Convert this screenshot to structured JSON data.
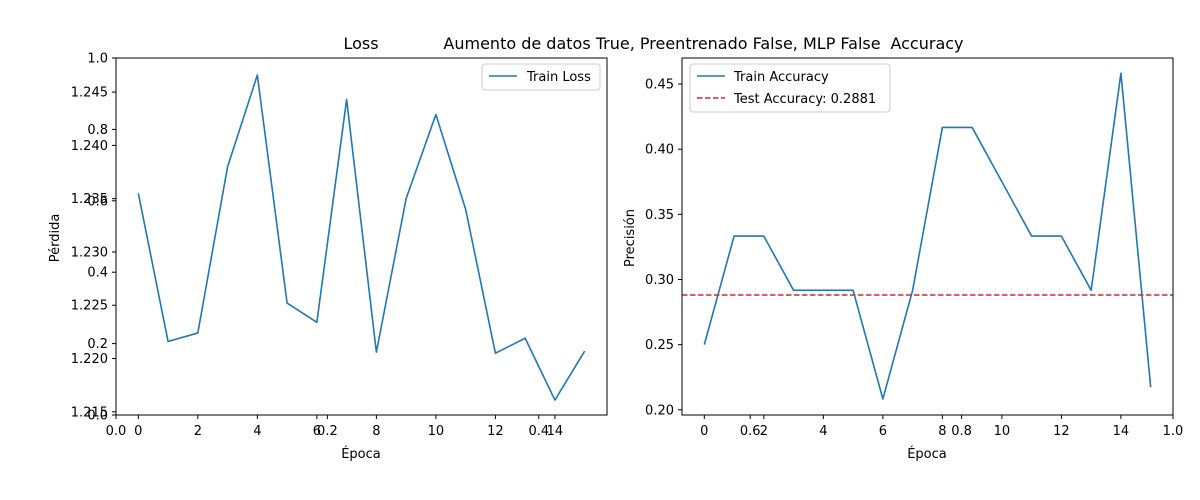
{
  "suptitle": "Aumento de datos True, Preentrenado False, MLP False",
  "chart_data": [
    {
      "type": "line",
      "title": "Loss",
      "xlabel": "Época",
      "ylabel": "Pérdida",
      "x": [
        0,
        1,
        2,
        3,
        4,
        5,
        6,
        7,
        8,
        9,
        10,
        11,
        12,
        13,
        14,
        15
      ],
      "xlim": [
        -0.75,
        15.75
      ],
      "ylim": [
        1.2147,
        1.2482
      ],
      "xticks": [
        0,
        2,
        4,
        6,
        8,
        10,
        12,
        14
      ],
      "yticks": [
        1.215,
        1.22,
        1.225,
        1.23,
        1.235,
        1.24,
        1.245
      ],
      "ytick_labels": [
        "1.215",
        "1.220",
        "1.225",
        "1.230",
        "1.235",
        "1.240",
        "1.245"
      ],
      "grid": false,
      "legend_position": "upper right",
      "series": [
        {
          "name": "Train Loss",
          "color": "#1f77b4",
          "style": "solid",
          "values": [
            1.2355,
            1.2216,
            1.2224,
            1.238,
            1.2466,
            1.2252,
            1.2234,
            1.2443,
            1.2206,
            1.235,
            1.2429,
            1.234,
            1.2205,
            1.2219,
            1.2161,
            1.2207
          ]
        }
      ]
    },
    {
      "type": "line",
      "title": "Accuracy",
      "xlabel": "Época",
      "ylabel": "Precisión",
      "x": [
        0,
        1,
        2,
        3,
        4,
        5,
        6,
        7,
        8,
        9,
        10,
        11,
        12,
        13,
        14,
        15
      ],
      "xlim": [
        -0.75,
        15.75
      ],
      "ylim": [
        0.196,
        0.47
      ],
      "xticks": [
        0,
        2,
        4,
        6,
        8,
        10,
        12,
        14
      ],
      "yticks": [
        0.2,
        0.25,
        0.3,
        0.35,
        0.4,
        0.45
      ],
      "ytick_labels": [
        "0.20",
        "0.25",
        "0.30",
        "0.35",
        "0.40",
        "0.45"
      ],
      "grid": false,
      "legend_position": "upper left",
      "series": [
        {
          "name": "Train Accuracy",
          "color": "#1f77b4",
          "style": "solid",
          "values": [
            0.25,
            0.3333,
            0.3333,
            0.2917,
            0.2917,
            0.2917,
            0.2083,
            0.2917,
            0.4167,
            0.4167,
            0.375,
            0.3333,
            0.3333,
            0.2917,
            0.4583,
            0.2174
          ]
        },
        {
          "name": "Test Accuracy: 0.2881",
          "color": "#d62728",
          "style": "dashed",
          "hline": 0.2881
        }
      ]
    },
    {
      "type": "line",
      "note_overlay_axes": "empty background axes",
      "xlim": [
        0,
        1
      ],
      "ylim": [
        0,
        1
      ],
      "xticks": [
        0.0,
        0.2,
        0.4,
        0.6,
        0.8,
        1.0
      ],
      "xtick_labels": [
        "0.0",
        "0.2",
        "0.4",
        "0.6",
        "0.8",
        "1.0"
      ],
      "yticks": [
        0.0,
        0.2,
        0.4,
        0.6,
        0.8,
        1.0
      ],
      "ytick_labels": [
        "0.0",
        "0.2",
        "0.4",
        "0.6",
        "0.8",
        "1.0"
      ]
    }
  ]
}
